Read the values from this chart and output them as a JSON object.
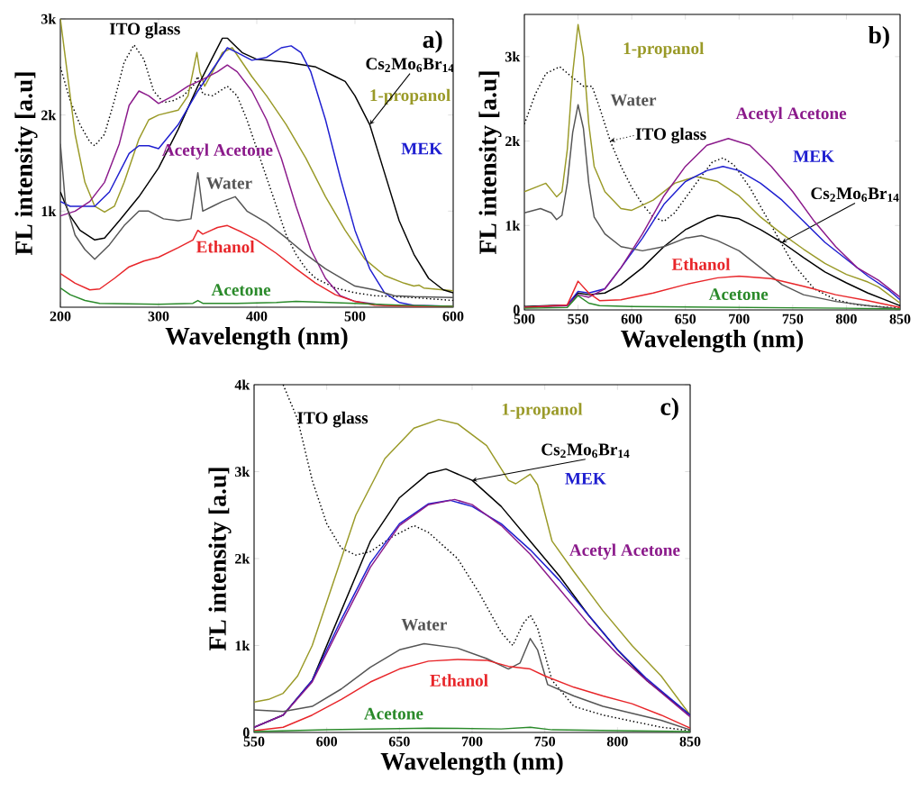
{
  "chart_data": [
    {
      "type": "line",
      "title": "a)",
      "xlabel": "Wavelength (nm)",
      "ylabel": "FL intensity [a.u]",
      "xlim": [
        200,
        600
      ],
      "ylim": [
        0,
        3000
      ],
      "xticks": [
        200,
        300,
        400,
        500,
        600
      ],
      "yticks": [
        {
          "value": 1000,
          "label": "1k"
        },
        {
          "value": 2000,
          "label": "2k"
        },
        {
          "value": 3000,
          "label": "3k"
        }
      ],
      "series": [
        {
          "name": "ITO glass",
          "color": "#000000",
          "line_style": "dotted",
          "x": [
            200,
            210,
            220,
            230,
            235,
            245,
            255,
            265,
            275,
            285,
            295,
            305,
            315,
            325,
            335,
            340,
            345,
            355,
            370,
            380,
            390,
            400,
            410,
            420,
            430,
            440,
            450,
            460,
            480,
            500,
            520,
            560,
            600
          ],
          "values": [
            2500,
            2150,
            1900,
            1720,
            1680,
            1800,
            2150,
            2550,
            2730,
            2580,
            2250,
            2130,
            2150,
            2200,
            2300,
            2400,
            2220,
            2200,
            2300,
            2200,
            1950,
            1650,
            1350,
            1050,
            750,
            550,
            400,
            300,
            200,
            150,
            120,
            100,
            70
          ]
        },
        {
          "name": "1-propanol",
          "color": "#9a9a28",
          "x": [
            200,
            205,
            215,
            225,
            235,
            245,
            255,
            265,
            280,
            290,
            300,
            320,
            330,
            336,
            339,
            342,
            347,
            355,
            365,
            375,
            385,
            395,
            410,
            430,
            450,
            470,
            490,
            510,
            530,
            550,
            560,
            565,
            570,
            600
          ],
          "values": [
            3000,
            2600,
            1800,
            1300,
            1050,
            990,
            1050,
            1300,
            1750,
            1950,
            2000,
            2050,
            2200,
            2500,
            2650,
            2450,
            2300,
            2450,
            2650,
            2700,
            2550,
            2400,
            2200,
            1900,
            1550,
            1150,
            800,
            500,
            330,
            250,
            220,
            230,
            200,
            170
          ]
        },
        {
          "name": "Cs$_{2}$Mo$_{6}$Br$_{14}$",
          "color": "#000000",
          "x": [
            200,
            210,
            220,
            235,
            245,
            260,
            280,
            300,
            320,
            340,
            355,
            365,
            370,
            385,
            400,
            430,
            460,
            480,
            490,
            500,
            515,
            530,
            545,
            560,
            575,
            590,
            600
          ],
          "values": [
            1200,
            950,
            800,
            700,
            720,
            900,
            1150,
            1450,
            1850,
            2300,
            2600,
            2800,
            2800,
            2650,
            2580,
            2550,
            2500,
            2400,
            2350,
            2200,
            1900,
            1400,
            900,
            550,
            300,
            180,
            150
          ]
        },
        {
          "name": "MEK",
          "color": "#1f1fd0",
          "x": [
            200,
            210,
            220,
            235,
            250,
            270,
            280,
            290,
            300,
            320,
            340,
            360,
            370,
            380,
            395,
            410,
            425,
            435,
            445,
            455,
            470,
            485,
            500,
            515,
            530,
            545,
            560,
            600
          ],
          "values": [
            1100,
            1050,
            1050,
            1050,
            1200,
            1600,
            1680,
            1680,
            1650,
            1900,
            2250,
            2550,
            2700,
            2650,
            2570,
            2600,
            2700,
            2720,
            2650,
            2450,
            1950,
            1350,
            800,
            400,
            150,
            50,
            20,
            10
          ]
        },
        {
          "name": "Acetyl Acetone",
          "color": "#8b1a8b",
          "x": [
            200,
            215,
            230,
            245,
            260,
            270,
            280,
            290,
            300,
            315,
            330,
            345,
            360,
            370,
            380,
            395,
            410,
            425,
            440,
            455,
            470,
            485,
            500,
            530,
            600
          ],
          "values": [
            950,
            1000,
            1100,
            1300,
            1700,
            2100,
            2250,
            2200,
            2120,
            2200,
            2300,
            2370,
            2450,
            2520,
            2450,
            2250,
            1950,
            1550,
            1050,
            600,
            300,
            120,
            60,
            20,
            10
          ]
        },
        {
          "name": "Water",
          "color": "#555555",
          "x": [
            200,
            205,
            215,
            225,
            235,
            250,
            265,
            280,
            290,
            305,
            320,
            333,
            340,
            345,
            355,
            365,
            378,
            390,
            410,
            430,
            450,
            470,
            490,
            500,
            520,
            540,
            560,
            600
          ],
          "values": [
            1700,
            1100,
            750,
            600,
            500,
            650,
            850,
            1000,
            1000,
            920,
            900,
            920,
            1400,
            1000,
            1050,
            1100,
            1150,
            1000,
            880,
            720,
            550,
            400,
            280,
            220,
            180,
            120,
            110,
            100
          ]
        },
        {
          "name": "Ethanol",
          "color": "#e8262a",
          "x": [
            200,
            215,
            230,
            240,
            255,
            270,
            285,
            300,
            320,
            335,
            340,
            345,
            360,
            370,
            385,
            400,
            420,
            440,
            460,
            480,
            500,
            520,
            560,
            600
          ],
          "values": [
            350,
            250,
            180,
            190,
            300,
            420,
            480,
            520,
            620,
            700,
            800,
            760,
            830,
            850,
            780,
            700,
            560,
            400,
            250,
            130,
            60,
            20,
            10,
            10
          ]
        },
        {
          "name": "Acetone",
          "color": "#2a8a2a",
          "x": [
            200,
            210,
            225,
            240,
            300,
            335,
            340,
            345,
            380,
            420,
            440,
            470,
            500,
            550,
            600
          ],
          "values": [
            200,
            130,
            70,
            40,
            30,
            40,
            70,
            40,
            40,
            50,
            60,
            50,
            40,
            20,
            10
          ]
        }
      ]
    },
    {
      "type": "line",
      "title": "b)",
      "xlabel": "Wavelength (nm)",
      "ylabel": "FL intensity [a.u]",
      "xlim": [
        500,
        850
      ],
      "ylim": [
        0,
        3500
      ],
      "xticks": [
        500,
        550,
        600,
        650,
        700,
        750,
        800,
        850
      ],
      "yticks": [
        0,
        {
          "value": 1000,
          "label": "1k"
        },
        {
          "value": 2000,
          "label": "2k"
        },
        {
          "value": 3000,
          "label": "3k"
        }
      ],
      "series": [
        {
          "name": "ITO glass",
          "color": "#000000",
          "line_style": "dotted",
          "x": [
            500,
            510,
            520,
            533,
            545,
            555,
            563,
            570,
            580,
            590,
            600,
            610,
            620,
            630,
            640,
            660,
            675,
            685,
            695,
            710,
            730,
            750,
            770,
            790,
            810,
            850
          ],
          "values": [
            2200,
            2550,
            2800,
            2880,
            2750,
            2650,
            2650,
            2400,
            2000,
            1700,
            1450,
            1250,
            1100,
            1050,
            1150,
            1500,
            1750,
            1800,
            1720,
            1450,
            1000,
            550,
            250,
            120,
            60,
            20
          ]
        },
        {
          "name": "1-propanol",
          "color": "#9a9a28",
          "x": [
            500,
            510,
            520,
            525,
            530,
            535,
            540,
            545,
            550,
            555,
            560,
            565,
            575,
            590,
            600,
            620,
            640,
            660,
            680,
            700,
            720,
            740,
            760,
            780,
            800,
            820,
            830,
            850
          ],
          "values": [
            1400,
            1450,
            1500,
            1420,
            1340,
            1400,
            1900,
            2800,
            3380,
            3000,
            2200,
            1700,
            1400,
            1200,
            1180,
            1300,
            1500,
            1580,
            1520,
            1350,
            1100,
            900,
            720,
            550,
            420,
            330,
            270,
            80
          ]
        },
        {
          "name": "Cs$_{2}$Mo$_{6}$Br$_{14}$",
          "color": "#000000",
          "x": [
            500,
            540,
            550,
            560,
            575,
            590,
            610,
            630,
            650,
            670,
            680,
            700,
            720,
            740,
            760,
            780,
            800,
            820,
            840,
            850
          ],
          "values": [
            40,
            60,
            200,
            180,
            200,
            300,
            500,
            750,
            950,
            1080,
            1120,
            1080,
            950,
            800,
            620,
            450,
            320,
            200,
            100,
            50
          ]
        },
        {
          "name": "MEK",
          "color": "#1f1fd0",
          "x": [
            500,
            540,
            550,
            560,
            575,
            590,
            610,
            630,
            650,
            670,
            685,
            700,
            720,
            740,
            760,
            780,
            800,
            820,
            840,
            850
          ],
          "values": [
            30,
            60,
            220,
            200,
            250,
            500,
            850,
            1250,
            1520,
            1650,
            1700,
            1650,
            1500,
            1300,
            1050,
            800,
            600,
            400,
            230,
            120
          ]
        },
        {
          "name": "Acetyl Acetone",
          "color": "#8b1a8b",
          "x": [
            500,
            540,
            550,
            560,
            575,
            590,
            610,
            630,
            650,
            670,
            690,
            710,
            730,
            750,
            770,
            790,
            810,
            830,
            850
          ],
          "values": [
            30,
            50,
            180,
            150,
            250,
            500,
            900,
            1350,
            1700,
            1950,
            2030,
            1950,
            1700,
            1400,
            1050,
            750,
            500,
            350,
            150
          ]
        },
        {
          "name": "Water",
          "color": "#555555",
          "x": [
            500,
            515,
            525,
            530,
            535,
            540,
            545,
            550,
            555,
            560,
            565,
            575,
            590,
            610,
            630,
            650,
            665,
            680,
            700,
            720,
            740,
            760,
            790,
            820,
            850
          ],
          "values": [
            1150,
            1200,
            1150,
            1070,
            1120,
            1500,
            2100,
            2430,
            2150,
            1500,
            1100,
            900,
            750,
            700,
            750,
            850,
            880,
            820,
            700,
            500,
            300,
            180,
            100,
            50,
            10
          ]
        },
        {
          "name": "Ethanol",
          "color": "#e8262a",
          "x": [
            500,
            540,
            550,
            560,
            570,
            590,
            620,
            650,
            680,
            700,
            730,
            760,
            790,
            820,
            850
          ],
          "values": [
            30,
            60,
            340,
            200,
            110,
            120,
            200,
            300,
            380,
            400,
            370,
            280,
            180,
            110,
            30
          ]
        },
        {
          "name": "Acetone",
          "color": "#2a8a2a",
          "x": [
            500,
            540,
            550,
            560,
            570,
            600,
            700,
            800,
            850
          ],
          "values": [
            20,
            30,
            170,
            80,
            50,
            40,
            30,
            20,
            10
          ]
        }
      ]
    },
    {
      "type": "line",
      "title": "c)",
      "xlabel": "Wavelength (nm)",
      "ylabel": "FL intensity [a.u]",
      "xlim": [
        550,
        850
      ],
      "ylim": [
        0,
        4000
      ],
      "xticks": [
        550,
        600,
        650,
        700,
        750,
        800,
        850
      ],
      "yticks": [
        0,
        {
          "value": 1000,
          "label": "1k"
        },
        {
          "value": 2000,
          "label": "2k"
        },
        {
          "value": 3000,
          "label": "3k"
        },
        {
          "value": 4000,
          "label": "4k"
        }
      ],
      "series": [
        {
          "name": "ITO glass",
          "color": "#000000",
          "line_style": "dotted",
          "x": [
            570,
            580,
            590,
            600,
            610,
            620,
            630,
            645,
            660,
            670,
            690,
            705,
            720,
            728,
            735,
            740,
            745,
            755,
            770,
            790,
            810,
            830,
            850
          ],
          "values": [
            4000,
            3600,
            2900,
            2400,
            2120,
            2040,
            2080,
            2250,
            2380,
            2300,
            2000,
            1600,
            1150,
            1000,
            1250,
            1350,
            1200,
            600,
            300,
            200,
            130,
            60,
            20
          ]
        },
        {
          "name": "1-propanol",
          "color": "#9a9a28",
          "x": [
            550,
            560,
            570,
            580,
            590,
            600,
            620,
            640,
            660,
            677,
            690,
            710,
            725,
            730,
            740,
            745,
            755,
            770,
            790,
            810,
            830,
            850
          ],
          "values": [
            350,
            380,
            450,
            650,
            1000,
            1500,
            2500,
            3150,
            3500,
            3600,
            3550,
            3300,
            2900,
            2860,
            2970,
            2850,
            2200,
            1850,
            1400,
            1000,
            650,
            200
          ]
        },
        {
          "name": "Cs$_{2}$Mo$_{6}$Br$_{14}$",
          "color": "#000000",
          "x": [
            550,
            570,
            590,
            610,
            630,
            650,
            670,
            682,
            700,
            720,
            740,
            760,
            780,
            800,
            820,
            850
          ],
          "values": [
            60,
            200,
            600,
            1400,
            2200,
            2700,
            2980,
            3030,
            2900,
            2600,
            2200,
            1800,
            1350,
            950,
            600,
            200
          ]
        },
        {
          "name": "MEK",
          "color": "#1f1fd0",
          "x": [
            550,
            570,
            590,
            610,
            630,
            650,
            670,
            685,
            700,
            720,
            740,
            760,
            780,
            800,
            820,
            850
          ],
          "values": [
            60,
            200,
            600,
            1300,
            1950,
            2400,
            2630,
            2670,
            2600,
            2400,
            2100,
            1750,
            1350,
            950,
            620,
            200
          ]
        },
        {
          "name": "Acetyl Acetone",
          "color": "#8b1a8b",
          "x": [
            550,
            570,
            590,
            610,
            630,
            650,
            670,
            688,
            700,
            720,
            740,
            760,
            780,
            800,
            820,
            850
          ],
          "values": [
            60,
            200,
            580,
            1250,
            1900,
            2380,
            2620,
            2680,
            2620,
            2380,
            2050,
            1650,
            1250,
            900,
            600,
            180
          ]
        },
        {
          "name": "Water",
          "color": "#555555",
          "x": [
            550,
            570,
            590,
            610,
            630,
            650,
            667,
            690,
            710,
            725,
            733,
            740,
            745,
            752,
            770,
            790,
            810,
            830,
            850
          ],
          "values": [
            260,
            240,
            300,
            500,
            750,
            950,
            1020,
            970,
            850,
            730,
            800,
            1080,
            950,
            550,
            420,
            300,
            220,
            140,
            30
          ]
        },
        {
          "name": "Ethanol",
          "color": "#e8262a",
          "x": [
            550,
            570,
            590,
            610,
            630,
            650,
            670,
            690,
            710,
            725,
            740,
            750,
            770,
            790,
            810,
            830,
            850
          ],
          "values": [
            20,
            60,
            200,
            380,
            580,
            730,
            820,
            840,
            830,
            760,
            730,
            650,
            520,
            420,
            330,
            200,
            50
          ]
        },
        {
          "name": "Acetone",
          "color": "#2a8a2a",
          "x": [
            550,
            600,
            670,
            720,
            740,
            755,
            800,
            850
          ],
          "values": [
            10,
            30,
            50,
            40,
            60,
            30,
            20,
            10
          ]
        }
      ]
    }
  ]
}
